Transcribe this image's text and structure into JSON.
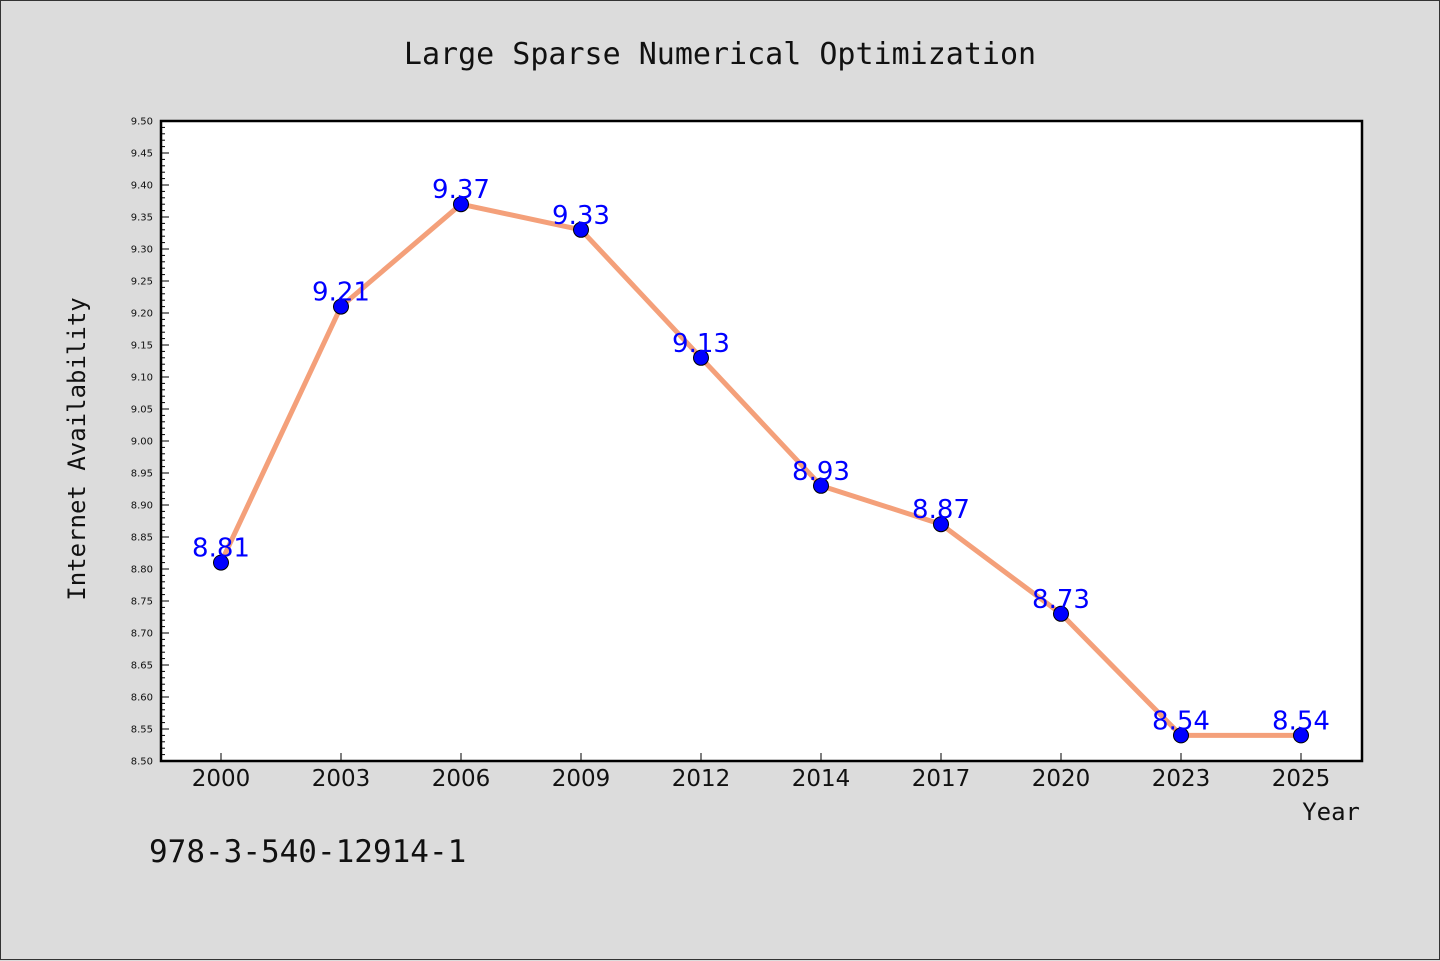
{
  "chart_data": {
    "type": "line",
    "title": "Large Sparse Numerical Optimization",
    "xlabel": "Year",
    "ylabel": "Internet Availability",
    "categories": [
      "2000",
      "2003",
      "2006",
      "2009",
      "2012",
      "2014",
      "2017",
      "2020",
      "2023",
      "2025"
    ],
    "series": [
      {
        "values": [
          8.81,
          9.21,
          9.37,
          9.33,
          9.13,
          8.93,
          8.87,
          8.73,
          8.54,
          8.54
        ],
        "labels": [
          "8.81",
          "9.21",
          "9.37",
          "9.33",
          "9.13",
          "8.93",
          "8.87",
          "8.73",
          "8.54",
          "8.54"
        ],
        "line_color": "#f4a07a",
        "marker_color": "#0000ff"
      }
    ],
    "ylim": [
      8.5,
      9.5
    ],
    "yticks": [
      "8.50",
      "8.55",
      "8.60",
      "8.65",
      "8.70",
      "8.75",
      "8.80",
      "8.85",
      "8.90",
      "8.95",
      "9.00",
      "9.05",
      "9.10",
      "9.15",
      "9.20",
      "9.25",
      "9.30",
      "9.35",
      "9.40",
      "9.45",
      "9.50"
    ],
    "grid": false,
    "legend": "none",
    "background_color": "#dcdcdc",
    "plot_background_color": "#ffffff"
  },
  "footer": {
    "code": "978-3-540-12914-1"
  }
}
